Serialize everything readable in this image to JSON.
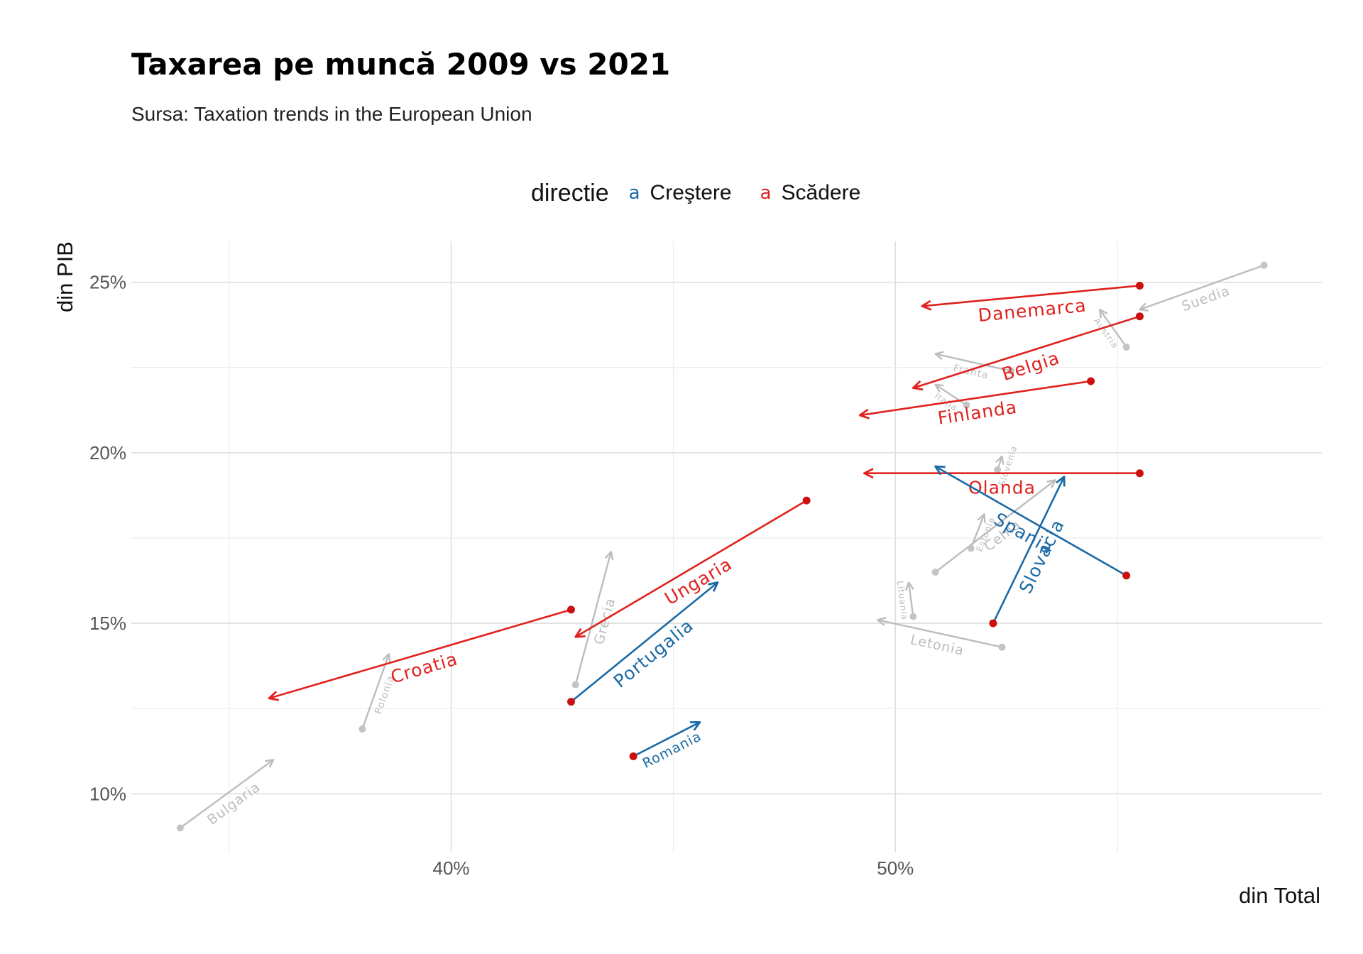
{
  "title": "Taxarea pe muncă 2009 vs 2021",
  "subtitle": "Sursa: Taxation trends in the European Union",
  "chart_data": {
    "type": "scatter",
    "subtype": "arrow",
    "xlabel": "din Total",
    "ylabel": "din PIB",
    "xlim": [
      32.8,
      59.6
    ],
    "ylim": [
      8.3,
      26.2
    ],
    "x_ticks": [
      40,
      50
    ],
    "x_tick_labels": [
      "40%",
      "50%"
    ],
    "y_ticks": [
      10,
      15,
      20,
      25
    ],
    "y_tick_labels": [
      "10%",
      "15%",
      "20%",
      "25%"
    ],
    "grid": true,
    "legend": {
      "title": "directie",
      "position": "top",
      "key_glyph": "a",
      "entries": [
        {
          "label": "Creştere",
          "color": "#1a6aa5"
        },
        {
          "label": "Scădere",
          "color": "#e0211d"
        }
      ]
    },
    "colors": {
      "Creştere": "#1a6aa5",
      "Scădere": "#e0211d",
      "other": "#bdbdbd",
      "point": "#cc1010"
    },
    "series": [
      {
        "name": "Suedia",
        "group": "other",
        "x1": 58.3,
        "y1": 25.5,
        "x2": 55.5,
        "y2": 24.2
      },
      {
        "name": "Austria",
        "group": "other",
        "x1": 55.2,
        "y1": 23.1,
        "x2": 54.6,
        "y2": 24.2
      },
      {
        "name": "Danemarca",
        "group": "Scădere",
        "x1": 55.5,
        "y1": 24.9,
        "x2": 50.6,
        "y2": 24.3
      },
      {
        "name": "Belgia",
        "group": "Scădere",
        "x1": 55.5,
        "y1": 24.0,
        "x2": 50.4,
        "y2": 21.9
      },
      {
        "name": "Finlanda",
        "group": "Scădere",
        "x1": 54.4,
        "y1": 22.1,
        "x2": 49.2,
        "y2": 21.1
      },
      {
        "name": "Olanda",
        "group": "Scădere",
        "x1": 55.5,
        "y1": 19.4,
        "x2": 49.3,
        "y2": 19.4
      },
      {
        "name": "Franta",
        "group": "other",
        "x1": 52.6,
        "y1": 22.4,
        "x2": 50.9,
        "y2": 22.9
      },
      {
        "name": "Italia",
        "group": "other",
        "x1": 51.6,
        "y1": 21.4,
        "x2": 50.9,
        "y2": 22.0
      },
      {
        "name": "Slovenia",
        "group": "other",
        "x1": 52.3,
        "y1": 19.5,
        "x2": 52.4,
        "y2": 19.9
      },
      {
        "name": "Cehia",
        "group": "other",
        "x1": 50.9,
        "y1": 16.5,
        "x2": 53.6,
        "y2": 19.2
      },
      {
        "name": "Estonia",
        "group": "other",
        "x1": 51.7,
        "y1": 17.2,
        "x2": 52.0,
        "y2": 18.2
      },
      {
        "name": "Spania",
        "group": "Creştere",
        "x1": 55.2,
        "y1": 16.4,
        "x2": 50.9,
        "y2": 19.6
      },
      {
        "name": "Slovacia",
        "group": "Creştere",
        "x1": 52.2,
        "y1": 15.0,
        "x2": 53.8,
        "y2": 19.3
      },
      {
        "name": "Lituania",
        "group": "other",
        "x1": 50.4,
        "y1": 15.2,
        "x2": 50.3,
        "y2": 16.2
      },
      {
        "name": "Letonia",
        "group": "other",
        "x1": 52.4,
        "y1": 14.3,
        "x2": 49.6,
        "y2": 15.1
      },
      {
        "name": "Ungaria",
        "group": "Scădere",
        "x1": 48.0,
        "y1": 18.6,
        "x2": 42.8,
        "y2": 14.6
      },
      {
        "name": "Portugalia",
        "group": "Creştere",
        "x1": 42.7,
        "y1": 12.7,
        "x2": 46.0,
        "y2": 16.2
      },
      {
        "name": "Grecia",
        "group": "other",
        "x1": 42.8,
        "y1": 13.2,
        "x2": 43.6,
        "y2": 17.1
      },
      {
        "name": "Croatia",
        "group": "Scădere",
        "x1": 42.7,
        "y1": 15.4,
        "x2": 35.9,
        "y2": 12.8
      },
      {
        "name": "Polonia",
        "group": "other",
        "x1": 38.0,
        "y1": 11.9,
        "x2": 38.6,
        "y2": 14.1
      },
      {
        "name": "Romania",
        "group": "Creştere",
        "x1": 44.1,
        "y1": 11.1,
        "x2": 45.6,
        "y2": 12.1
      },
      {
        "name": "Bulgaria",
        "group": "other",
        "x1": 33.9,
        "y1": 9.0,
        "x2": 36.0,
        "y2": 11.0
      }
    ]
  }
}
